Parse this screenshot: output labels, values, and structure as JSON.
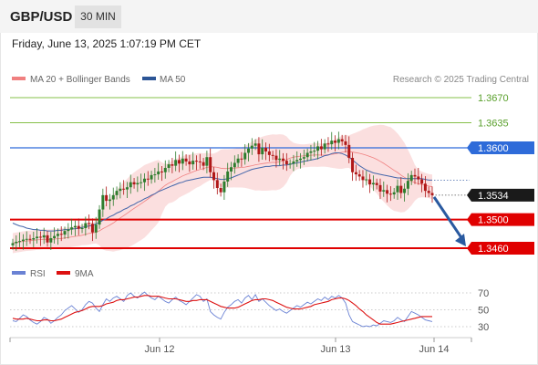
{
  "header": {
    "symbol": "GBP/USD",
    "timeframe": "30 MIN",
    "datetime": "Friday, June 13, 2025 1:07:19 PM CET"
  },
  "legend": {
    "items": [
      {
        "label": "MA 20 + Bollinger Bands",
        "color": "#f08080"
      },
      {
        "label": "MA 50",
        "color": "#2c5596"
      }
    ],
    "copyright": "Research © 2025 Trading Central"
  },
  "rsi_legend": {
    "items": [
      {
        "label": "RSI",
        "color": "#6a82d4"
      },
      {
        "label": "9MA",
        "color": "#dd1111"
      }
    ]
  },
  "colors": {
    "up": "#2e7d2e",
    "down": "#b01818",
    "support": "#e00000",
    "resistance": "#2e6bd9",
    "target": "#86c04a",
    "arrow": "#2a5aa0",
    "band": "#f7c0c0"
  },
  "chart_data": [
    {
      "type": "candlestick",
      "title": "",
      "x_ticks": [
        "Jun 12",
        "Jun 13",
        "Jun 14"
      ],
      "ylim": [
        1.3425,
        1.369
      ],
      "levels": [
        {
          "value": 1.367,
          "label": "1.3670",
          "kind": "target"
        },
        {
          "value": 1.3635,
          "label": "1.3635",
          "kind": "target"
        },
        {
          "value": 1.36,
          "label": "1.3600",
          "kind": "resistance"
        },
        {
          "value": 1.3534,
          "label": "1.3534",
          "kind": "last"
        },
        {
          "value": 1.35,
          "label": "1.3500",
          "kind": "support"
        },
        {
          "value": 1.346,
          "label": "1.3460",
          "kind": "support"
        }
      ],
      "close": [
        1.3467,
        1.3469,
        1.347,
        1.3472,
        1.3473,
        1.3472,
        1.3474,
        1.3476,
        1.3475,
        1.3478,
        1.3468,
        1.3474,
        1.3477,
        1.348,
        1.3479,
        1.3484,
        1.3486,
        1.3489,
        1.3491,
        1.3487,
        1.3488,
        1.3495,
        1.3494,
        1.3482,
        1.3493,
        1.3514,
        1.3534,
        1.3526,
        1.3528,
        1.3534,
        1.354,
        1.3543,
        1.3542,
        1.3545,
        1.3552,
        1.3549,
        1.3551,
        1.3552,
        1.3557,
        1.3556,
        1.3562,
        1.3563,
        1.3567,
        1.3566,
        1.3572,
        1.3577,
        1.3575,
        1.3583,
        1.3578,
        1.3585,
        1.3581,
        1.3577,
        1.3582,
        1.3581,
        1.358,
        1.3575,
        1.3587,
        1.3566,
        1.3555,
        1.3544,
        1.3538,
        1.3553,
        1.3567,
        1.3573,
        1.3579,
        1.3585,
        1.3584,
        1.3593,
        1.3599,
        1.3603,
        1.3606,
        1.3591,
        1.36,
        1.3595,
        1.359,
        1.3589,
        1.3583,
        1.3585,
        1.3582,
        1.3577,
        1.3578,
        1.3581,
        1.3583,
        1.3585,
        1.3587,
        1.3593,
        1.3595,
        1.3596,
        1.3602,
        1.3598,
        1.3606,
        1.3605,
        1.361,
        1.3607,
        1.3612,
        1.3609,
        1.3604,
        1.3586,
        1.3566,
        1.3563,
        1.356,
        1.3555,
        1.3556,
        1.3549,
        1.3551,
        1.3548,
        1.3539,
        1.3541,
        1.3536,
        1.3535,
        1.3538,
        1.3547,
        1.3537,
        1.3543,
        1.3554,
        1.3562,
        1.356,
        1.3556,
        1.355,
        1.354,
        1.3537,
        1.3534
      ],
      "ma50": [
        1.3495,
        1.3493,
        1.3491,
        1.349,
        1.3488,
        1.3487,
        1.3486,
        1.3486,
        1.3485,
        1.3485,
        1.3484,
        1.3484,
        1.3484,
        1.3485,
        1.3485,
        1.3486,
        1.3486,
        1.3487,
        1.3487,
        1.3488,
        1.3489,
        1.349,
        1.3491,
        1.3492,
        1.3494,
        1.3496,
        1.3499,
        1.3501,
        1.3504,
        1.3506,
        1.3509,
        1.3511,
        1.3514,
        1.3516,
        1.3519,
        1.3521,
        1.3524,
        1.3526,
        1.3529,
        1.3531,
        1.3534,
        1.3536,
        1.3539,
        1.3541,
        1.3543,
        1.3545,
        1.3547,
        1.3549,
        1.3551,
        1.3552,
        1.3554,
        1.3555,
        1.3556,
        1.3557,
        1.3558,
        1.3559,
        1.3559,
        1.3559,
        1.3558,
        1.3557,
        1.3556,
        1.3556,
        1.3557,
        1.3558,
        1.356,
        1.3562,
        1.3564,
        1.3566,
        1.3568,
        1.357,
        1.3571,
        1.3572,
        1.3573,
        1.3574,
        1.3574,
        1.3575,
        1.3575,
        1.3575,
        1.3576,
        1.3576,
        1.3577,
        1.3578,
        1.3579,
        1.358,
        1.3581,
        1.3582,
        1.3583,
        1.3584,
        1.3585,
        1.3587,
        1.3589,
        1.359,
        1.3592,
        1.3593,
        1.3593,
        1.3592,
        1.359,
        1.3587,
        1.3583,
        1.3579,
        1.3575,
        1.3572,
        1.3569,
        1.3567,
        1.3565,
        1.3564,
        1.3563,
        1.3562,
        1.3561,
        1.356,
        1.3559,
        1.3558,
        1.3558,
        1.3557,
        1.3557,
        1.3557,
        1.3557,
        1.3557,
        1.3557,
        1.3556,
        1.3555,
        1.3555
      ],
      "projection": {
        "from": 1.3534,
        "to": 1.346
      }
    },
    {
      "type": "line",
      "title": "RSI",
      "ylim": [
        20,
        80
      ],
      "y_ticks": [
        70,
        50,
        30
      ],
      "series": [
        {
          "name": "RSI",
          "values": [
            37,
            36,
            40,
            44,
            42,
            38,
            35,
            33,
            36,
            41,
            39,
            34,
            37,
            41,
            44,
            49,
            52,
            55,
            51,
            47,
            50,
            56,
            60,
            58,
            52,
            48,
            56,
            63,
            60,
            64,
            66,
            63,
            60,
            67,
            70,
            66,
            64,
            68,
            71,
            67,
            64,
            62,
            66,
            63,
            60,
            58,
            62,
            65,
            61,
            59,
            56,
            60,
            64,
            68,
            66,
            60,
            63,
            48,
            44,
            41,
            39,
            47,
            53,
            56,
            60,
            62,
            58,
            64,
            67,
            62,
            68,
            60,
            63,
            59,
            55,
            52,
            49,
            51,
            48,
            46,
            49,
            52,
            55,
            53,
            56,
            59,
            57,
            60,
            63,
            61,
            65,
            62,
            66,
            64,
            67,
            64,
            58,
            44,
            36,
            34,
            32,
            30,
            31,
            30,
            32,
            31,
            34,
            37,
            36,
            35,
            37,
            41,
            38,
            36,
            42,
            48,
            46,
            44,
            41,
            38,
            37,
            36
          ]
        },
        {
          "name": "9MA",
          "values": [
            40,
            39,
            39,
            39,
            40,
            39,
            38,
            37,
            37,
            38,
            38,
            37,
            37,
            38,
            39,
            41,
            43,
            45,
            47,
            48,
            49,
            51,
            53,
            54,
            54,
            54,
            55,
            57,
            58,
            59,
            61,
            62,
            62,
            63,
            64,
            65,
            65,
            66,
            67,
            67,
            66,
            66,
            66,
            65,
            64,
            63,
            63,
            63,
            62,
            61,
            60,
            60,
            61,
            61,
            62,
            62,
            62,
            60,
            58,
            56,
            54,
            53,
            52,
            52,
            52,
            53,
            55,
            57,
            59,
            61,
            62,
            62,
            63,
            63,
            62,
            61,
            59,
            57,
            55,
            53,
            52,
            51,
            51,
            51,
            52,
            53,
            54,
            56,
            57,
            58,
            59,
            60,
            62,
            63,
            64,
            64,
            63,
            61,
            58,
            55,
            51,
            48,
            44,
            41,
            38,
            35,
            33,
            33,
            33,
            33,
            34,
            35,
            36,
            37,
            38,
            39,
            40,
            41,
            42,
            42,
            42,
            42
          ]
        }
      ]
    }
  ]
}
